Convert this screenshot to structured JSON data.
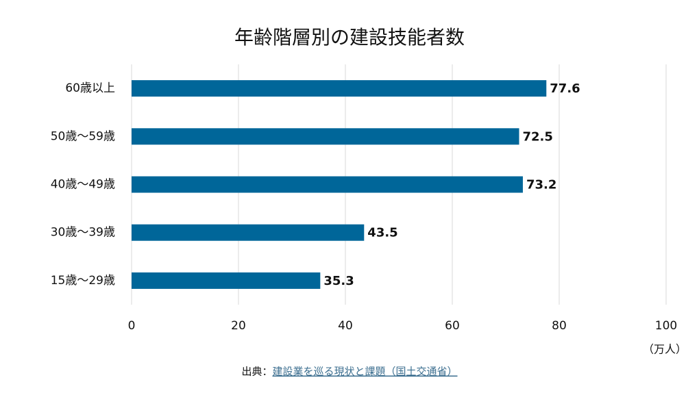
{
  "chart_data": {
    "type": "bar",
    "orientation": "horizontal",
    "title": "年齢階層別の建設技能者数",
    "categories": [
      "60歳以上",
      "50歳〜59歳",
      "40歳〜49歳",
      "30歳〜39歳",
      "15歳〜29歳"
    ],
    "values": [
      77.6,
      72.5,
      73.2,
      43.5,
      35.3
    ],
    "color": "#006699",
    "xlim": [
      0,
      100
    ],
    "xticks": [
      0,
      20,
      40,
      60,
      80,
      100
    ],
    "grid": true,
    "x_label": "（万人）",
    "source_label": "出典：",
    "source": "建設業を巡る現状と課題（国土交通省）"
  }
}
